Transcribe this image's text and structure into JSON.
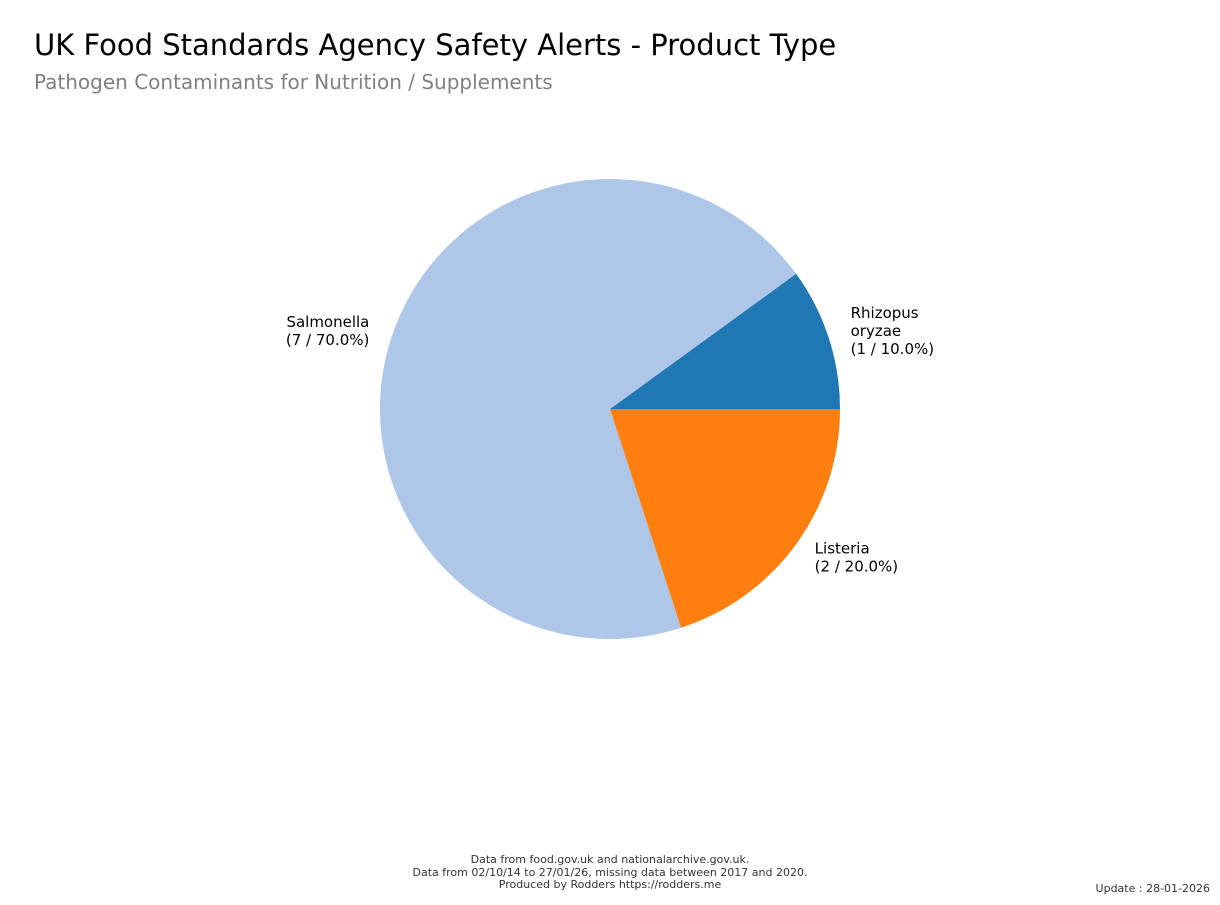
{
  "chart_data": {
    "type": "pie",
    "title": "UK Food Standards Agency Safety Alerts - Product Type",
    "subtitle": "Pathogen Contaminants for Nutrition / Supplements",
    "slices": [
      {
        "name": "Rhizopus",
        "name_line2": "oryzae",
        "value": 1,
        "label": "(1 / 10.0%)",
        "color": "#1f77b4"
      },
      {
        "name": "Salmonella",
        "name_line2": "",
        "value": 7,
        "label": "(7 / 70.0%)",
        "color": "#aec7e8"
      },
      {
        "name": "Listeria",
        "name_line2": "",
        "value": 2,
        "label": "(2 / 20.0%)",
        "color": "#ff7f0e"
      }
    ],
    "start_angle_deg": 0,
    "direction": "counterclockwise",
    "legend": "none"
  },
  "footer": {
    "line1": "Data from food.gov.uk and nationalarchive.gov.uk.",
    "line2": "Data from 02/10/14 to 27/01/26, missing data between 2017 and 2020.",
    "line3": "Produced by Rodders https://rodders.me"
  },
  "update_note": "Update : 28-01-2026"
}
